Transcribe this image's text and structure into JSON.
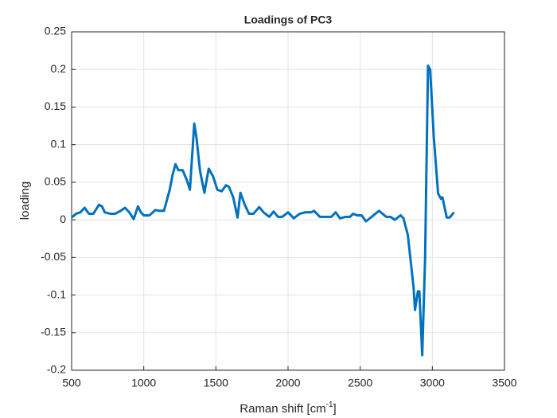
{
  "chart_data": {
    "type": "line",
    "title": "Loadings of PC3",
    "xlabel": "Raman shift [cm",
    "xlabel_superscript": "-1",
    "xlabel_end": "]",
    "ylabel": "loading",
    "x": [
      500,
      530,
      560,
      590,
      620,
      650,
      690,
      710,
      730,
      770,
      800,
      840,
      870,
      900,
      930,
      960,
      980,
      1000,
      1040,
      1080,
      1110,
      1140,
      1180,
      1200,
      1220,
      1240,
      1270,
      1300,
      1320,
      1350,
      1365,
      1390,
      1420,
      1450,
      1480,
      1510,
      1540,
      1570,
      1590,
      1620,
      1650,
      1670,
      1700,
      1730,
      1760,
      1800,
      1830,
      1870,
      1900,
      1930,
      1960,
      2000,
      2040,
      2080,
      2120,
      2160,
      2180,
      2220,
      2260,
      2300,
      2330,
      2360,
      2400,
      2430,
      2450,
      2480,
      2510,
      2540,
      2580,
      2630,
      2680,
      2710,
      2740,
      2780,
      2800,
      2830,
      2870,
      2880,
      2900,
      2910,
      2930,
      2950,
      2970,
      2985,
      3010,
      3040,
      3060,
      3070,
      3100,
      3120,
      3150
    ],
    "series": [
      {
        "color": "#0072bd",
        "values": [
          0.003,
          0.008,
          0.01,
          0.016,
          0.008,
          0.008,
          0.02,
          0.018,
          0.01,
          0.008,
          0.008,
          0.012,
          0.016,
          0.01,
          0.001,
          0.018,
          0.01,
          0.006,
          0.006,
          0.013,
          0.012,
          0.012,
          0.04,
          0.06,
          0.074,
          0.066,
          0.066,
          0.052,
          0.04,
          0.128,
          0.11,
          0.065,
          0.036,
          0.068,
          0.058,
          0.04,
          0.038,
          0.046,
          0.044,
          0.03,
          0.003,
          0.036,
          0.02,
          0.008,
          0.008,
          0.017,
          0.01,
          0.004,
          0.011,
          0.004,
          0.004,
          0.01,
          0.002,
          0.008,
          0.01,
          0.01,
          0.012,
          0.004,
          0.004,
          0.004,
          0.01,
          0.002,
          0.004,
          0.004,
          0.008,
          0.006,
          0.006,
          -0.002,
          0.004,
          0.012,
          0.004,
          0.004,
          0.0,
          0.006,
          0.002,
          -0.02,
          -0.09,
          -0.12,
          -0.095,
          -0.095,
          -0.18,
          -0.05,
          0.205,
          0.2,
          0.11,
          0.035,
          0.028,
          0.03,
          0.003,
          0.003,
          0.01
        ]
      }
    ],
    "xlim": [
      500,
      3500
    ],
    "xticks": [
      500,
      1000,
      1500,
      2000,
      2500,
      3000,
      3500
    ],
    "ylim": [
      -0.2,
      0.25
    ],
    "yticks": [
      -0.2,
      -0.15,
      -0.1,
      -0.05,
      0,
      0.05,
      0.1,
      0.15,
      0.2,
      0.25
    ],
    "grid": true
  }
}
